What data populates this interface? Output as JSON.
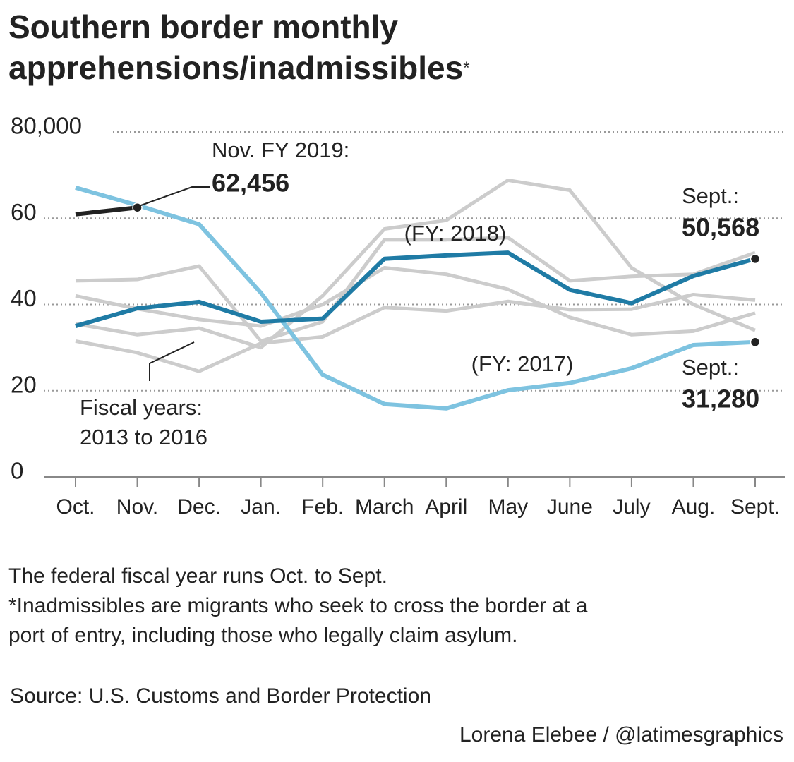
{
  "chart_data": {
    "type": "line",
    "title": [
      "Southern border monthly",
      "apprehensions/inadmissibles"
    ],
    "title_mark": "*",
    "categories": [
      "Oct.",
      "Nov.",
      "Dec.",
      "Jan.",
      "Feb.",
      "March",
      "April",
      "May",
      "June",
      "July",
      "Aug.",
      "Sept."
    ],
    "ylim": [
      0,
      80000
    ],
    "yticks": [
      0,
      {
        "value": 20000,
        "label": "20"
      },
      {
        "value": 40000,
        "label": "40"
      },
      {
        "value": 60000,
        "label": "60"
      },
      {
        "value": 80000,
        "label": "80,000"
      }
    ],
    "grid": true,
    "series": [
      {
        "color": "#cccccc",
        "values": [
          45500,
          45800,
          48900,
          31500,
          36000,
          55000,
          55000,
          55500,
          45500,
          46500,
          47000,
          52000
        ]
      },
      {
        "color": "#cccccc",
        "values": [
          35500,
          33000,
          34500,
          30000,
          42000,
          57500,
          59500,
          68800,
          66500,
          48500,
          40000,
          34000
        ]
      },
      {
        "color": "#cccccc",
        "values": [
          31500,
          28800,
          24500,
          31000,
          32500,
          39300,
          38500,
          40700,
          38800,
          38900,
          42300,
          41000
        ]
      },
      {
        "color": "#cccccc",
        "values": [
          42000,
          39000,
          36500,
          35000,
          40000,
          48500,
          47000,
          43500,
          37000,
          33000,
          33800,
          38000
        ]
      },
      {
        "name": "(FY: 2017)",
        "color": "#7ec3e0",
        "values": [
          67100,
          63000,
          58600,
          42700,
          23700,
          16900,
          15900,
          20100,
          21800,
          25200,
          30600,
          31280
        ],
        "value_labels": [
          null,
          null,
          null,
          null,
          null,
          null,
          null,
          null,
          null,
          null,
          null,
          "31,280"
        ]
      },
      {
        "name": "(FY: 2018)",
        "color": "#1f7ba5",
        "values": [
          35000,
          39100,
          40600,
          36000,
          36700,
          50600,
          51400,
          52000,
          43400,
          40300,
          46600,
          50568
        ],
        "value_labels": [
          null,
          null,
          null,
          null,
          null,
          null,
          null,
          null,
          null,
          null,
          null,
          "50,568"
        ]
      },
      {
        "color": "#222222",
        "values": [
          60900,
          62456,
          null,
          null,
          null,
          null,
          null,
          null,
          null,
          null,
          null,
          null
        ],
        "value_labels": [
          null,
          "62,456",
          null,
          null,
          null,
          null,
          null,
          null,
          null,
          null,
          null,
          null
        ]
      }
    ],
    "annotations": [
      "Nov. FY 2019:",
      "Sept.:",
      "Sept.:",
      "Fiscal years:",
      "2013 to 2016"
    ],
    "notes": [
      "The federal fiscal year runs Oct. to Sept.",
      "*Inadmissibles are migrants who seek to cross the border at a",
      "port of entry, including those who legally claim asylum."
    ],
    "source": "Source: U.S. Customs and Border Protection",
    "credit": "Lorena Elebee / @latimesgraphics"
  }
}
